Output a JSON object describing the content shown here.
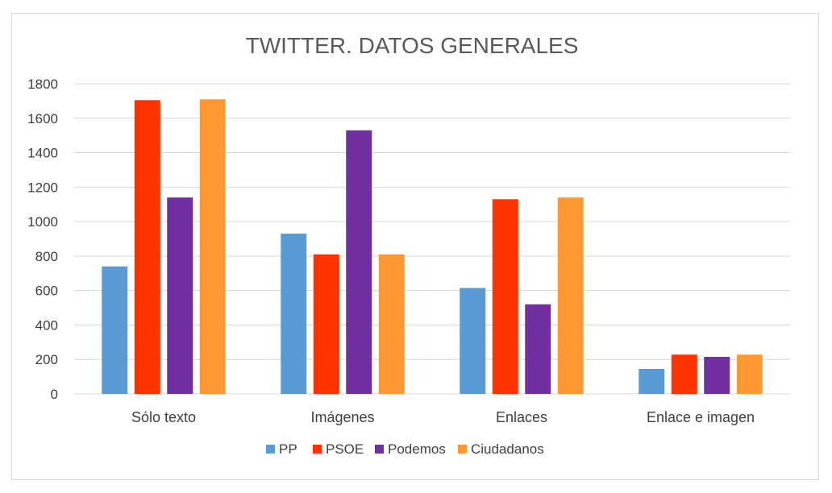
{
  "chart_data": {
    "type": "bar",
    "title": "TWITTER. DATOS GENERALES",
    "xlabel": "",
    "ylabel": "",
    "ylim": [
      0,
      1800
    ],
    "yticks": [
      0,
      200,
      400,
      600,
      800,
      1000,
      1200,
      1400,
      1600,
      1800
    ],
    "grid": true,
    "legend_position": "bottom",
    "categories": [
      "Sólo texto",
      "Imágenes",
      "Enlaces",
      "Enlace e imagen"
    ],
    "series": [
      {
        "name": "PP",
        "color": "#5b9bd5",
        "values": [
          740,
          930,
          615,
          145
        ]
      },
      {
        "name": "PSOE",
        "color": "#ff3300",
        "values": [
          1705,
          810,
          1130,
          228
        ]
      },
      {
        "name": "Podemos",
        "color": "#7030a0",
        "values": [
          1140,
          1530,
          520,
          215
        ]
      },
      {
        "name": "Ciudadanos",
        "color": "#ff9933",
        "values": [
          1710,
          810,
          1140,
          228
        ]
      }
    ]
  }
}
